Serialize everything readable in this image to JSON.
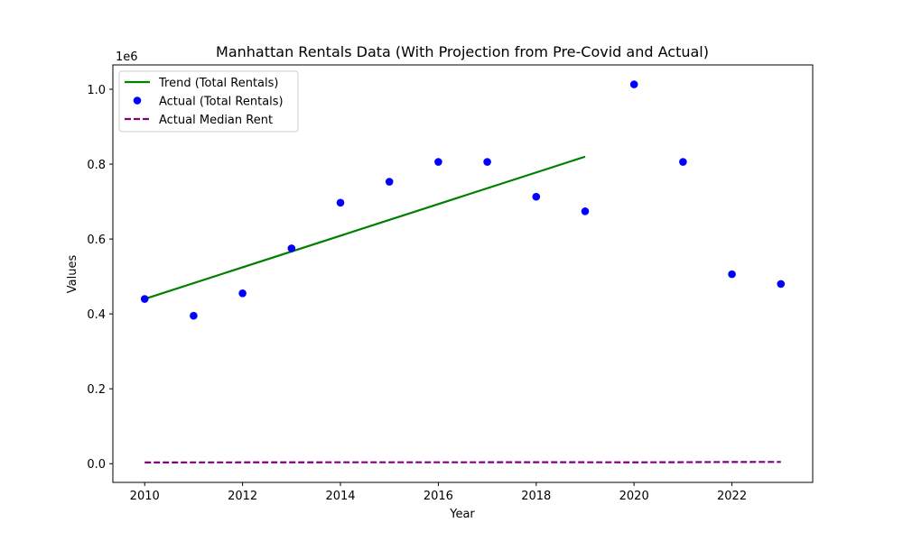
{
  "chart_data": {
    "type": "line",
    "title": "Manhattan Rentals Data (With Projection from Pre-Covid and Actual)",
    "xlabel": "Year",
    "ylabel": "Values",
    "y_offset_label": "1e6",
    "xlim": [
      2009.35,
      2023.65
    ],
    "ylim": [
      -0.05,
      1.065
    ],
    "y_scale_factor": 1000000,
    "x_ticks": [
      2010,
      2012,
      2014,
      2016,
      2018,
      2020,
      2022
    ],
    "x_tick_labels": [
      "2010",
      "2012",
      "2014",
      "2016",
      "2018",
      "2020",
      "2022"
    ],
    "y_ticks": [
      0.0,
      0.2,
      0.4,
      0.6,
      0.8,
      1.0
    ],
    "y_tick_labels": [
      "0.0",
      "0.2",
      "0.4",
      "0.6",
      "0.8",
      "1.0"
    ],
    "grid": false,
    "legend_position": "top-left",
    "series": [
      {
        "name": "Trend (Total Rentals)",
        "kind": "line",
        "style": "solid",
        "color": "#008000",
        "x": [
          2010,
          2019
        ],
        "y": [
          0.44,
          0.82
        ]
      },
      {
        "name": "Actual (Total Rentals)",
        "kind": "scatter",
        "color": "#0000ff",
        "x": [
          2010,
          2011,
          2012,
          2013,
          2014,
          2015,
          2016,
          2017,
          2018,
          2019,
          2020,
          2021,
          2022,
          2023
        ],
        "y": [
          0.44,
          0.395,
          0.455,
          0.575,
          0.697,
          0.753,
          0.806,
          0.806,
          0.713,
          0.674,
          1.013,
          0.806,
          0.506,
          0.48
        ]
      },
      {
        "name": "Actual Median Rent",
        "kind": "line",
        "style": "dashed",
        "color": "#800080",
        "x": [
          2010,
          2011,
          2012,
          2013,
          2014,
          2015,
          2016,
          2017,
          2018,
          2019,
          2020,
          2021,
          2022,
          2023
        ],
        "y": [
          0.0033,
          0.0034,
          0.0035,
          0.0036,
          0.0037,
          0.0037,
          0.0037,
          0.0038,
          0.0038,
          0.0038,
          0.0036,
          0.004,
          0.0045,
          0.0047
        ]
      }
    ]
  }
}
